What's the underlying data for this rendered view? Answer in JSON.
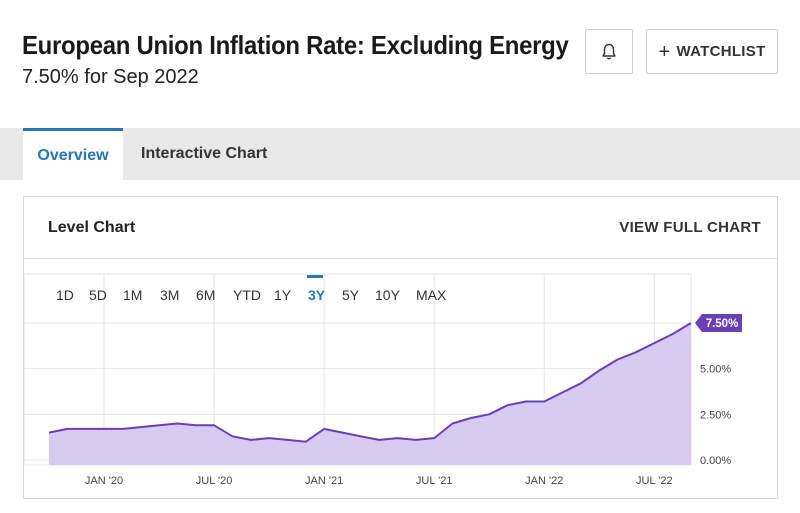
{
  "header": {
    "title": "European Union Inflation Rate: Excluding Energy",
    "subtitle": "7.50% for Sep 2022",
    "alert_icon": "bell-icon",
    "watchlist_label": "WATCHLIST",
    "watchlist_icon": "plus-icon"
  },
  "tabs": [
    {
      "label": "Overview",
      "active": true
    },
    {
      "label": "Interactive Chart",
      "active": false
    }
  ],
  "card": {
    "title": "Level Chart",
    "full_chart_label": "VIEW FULL CHART"
  },
  "ranges": [
    "1D",
    "5D",
    "1M",
    "3M",
    "6M",
    "YTD",
    "1Y",
    "3Y",
    "5Y",
    "10Y",
    "MAX"
  ],
  "active_range": "3Y",
  "colors": {
    "accent": "#2478b5",
    "line": "#6a3fb5",
    "fill": "#d7cbf1",
    "badge": "#6a3fb5"
  },
  "chart_data": {
    "type": "area",
    "title": "Level Chart",
    "x": [
      "2019-10",
      "2019-11",
      "2019-12",
      "2020-01",
      "2020-02",
      "2020-03",
      "2020-04",
      "2020-05",
      "2020-06",
      "2020-07",
      "2020-08",
      "2020-09",
      "2020-10",
      "2020-11",
      "2020-12",
      "2021-01",
      "2021-02",
      "2021-03",
      "2021-04",
      "2021-05",
      "2021-06",
      "2021-07",
      "2021-08",
      "2021-09",
      "2021-10",
      "2021-11",
      "2021-12",
      "2022-01",
      "2022-02",
      "2022-03",
      "2022-04",
      "2022-05",
      "2022-06",
      "2022-07",
      "2022-08",
      "2022-09"
    ],
    "values": [
      1.5,
      1.7,
      1.7,
      1.7,
      1.7,
      1.8,
      1.9,
      2.0,
      1.9,
      1.9,
      1.3,
      1.1,
      1.2,
      1.1,
      1.0,
      1.7,
      1.5,
      1.3,
      1.1,
      1.2,
      1.1,
      1.2,
      2.0,
      2.3,
      2.5,
      3.0,
      3.2,
      3.2,
      3.7,
      4.2,
      4.9,
      5.5,
      5.9,
      6.4,
      6.9,
      7.5
    ],
    "last_value_label": "7.50%",
    "yticks": [
      "0.00%",
      "2.50%",
      "5.00%",
      "7.50%"
    ],
    "ytick_values": [
      0,
      2.5,
      5,
      7.5
    ],
    "xticks": [
      "JAN '20",
      "JUL '20",
      "JAN '21",
      "JUL '21",
      "JAN '22",
      "JUL '22"
    ],
    "xtick_dates": [
      "2020-01",
      "2020-07",
      "2021-01",
      "2021-07",
      "2022-01",
      "2022-07"
    ],
    "ylim": [
      0,
      7.5
    ],
    "xlabel": "",
    "ylabel": "",
    "grid": true
  }
}
